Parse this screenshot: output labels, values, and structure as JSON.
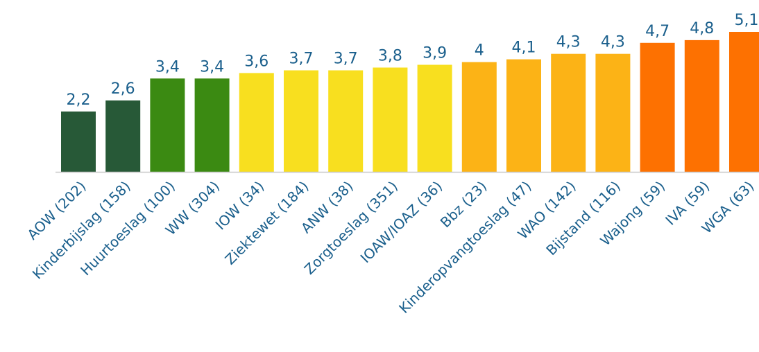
{
  "chart_data": {
    "type": "bar",
    "title": "",
    "xlabel": "",
    "ylabel": "",
    "ylim": [
      0,
      5.1
    ],
    "grid": false,
    "legend": "none",
    "categories": [
      "AOW (202)",
      "Kinderbijslag (158)",
      "Huurtoeslag (100)",
      "WW (304)",
      "IOW (34)",
      "Ziektewet (184)",
      "ANW (38)",
      "Zorgtoeslag (351)",
      "IOAW/IOAZ (36)",
      "Bbz (23)",
      "Kinderopvangtoeslag (47)",
      "WAO (142)",
      "Bijstand (116)",
      "Wajong (59)",
      "IVA (59)",
      "WGA (63)"
    ],
    "values": [
      2.2,
      2.6,
      3.4,
      3.4,
      3.6,
      3.7,
      3.7,
      3.8,
      3.9,
      4.0,
      4.1,
      4.3,
      4.3,
      4.7,
      4.8,
      5.1
    ],
    "value_labels": [
      "2,2",
      "2,6",
      "3,4",
      "3,4",
      "3,6",
      "3,7",
      "3,7",
      "3,8",
      "3,9",
      "4",
      "4,1",
      "4,3",
      "4,3",
      "4,7",
      "4,8",
      "5,1"
    ],
    "colors": [
      "#275937",
      "#275937",
      "#3b8a12",
      "#3b8a12",
      "#f8df1f",
      "#f8df1f",
      "#f8df1f",
      "#f8df1f",
      "#f8df1f",
      "#fcb316",
      "#fcb316",
      "#fcb316",
      "#fcb316",
      "#fd7101",
      "#fd7101",
      "#fd7101"
    ],
    "axis_color": "#c8c8c8",
    "text_color": "#1a5f8c"
  }
}
